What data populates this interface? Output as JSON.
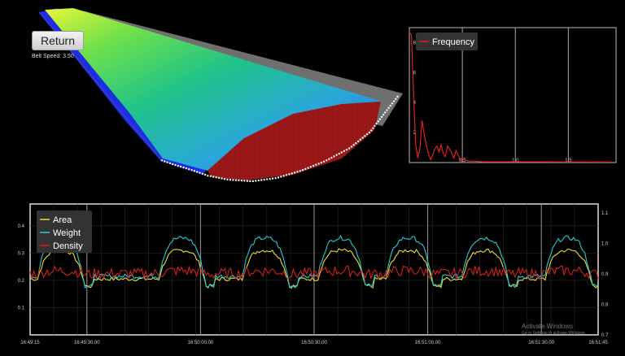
{
  "controls": {
    "return_label": "Return",
    "belt_speed_label": "Belt Speed:",
    "belt_speed_value": "3.50"
  },
  "frequency_chart": {
    "chart_data": {
      "type": "line",
      "legend": "top-left",
      "series": [
        {
          "name": "Frequency",
          "color": "#e0211f",
          "x": [
            0.0,
            0.02,
            0.04,
            0.06,
            0.08,
            0.1,
            0.12,
            0.14,
            0.16,
            0.18,
            0.2,
            0.22,
            0.24,
            0.26,
            0.28,
            0.3,
            0.32,
            0.34,
            0.36,
            0.38,
            0.4,
            0.42,
            0.44,
            0.46,
            0.48,
            0.5,
            0.55,
            0.6,
            0.7,
            0.8,
            1.0,
            1.2,
            1.5,
            1.9
          ],
          "y": [
            8.7,
            8.5,
            4.5,
            1.2,
            0.3,
            0.9,
            2.8,
            1.9,
            1.2,
            0.6,
            0.2,
            0.5,
            0.9,
            1.1,
            0.7,
            1.2,
            0.6,
            0.4,
            1.1,
            0.9,
            0.6,
            0.3,
            0.8,
            0.5,
            0.2,
            0.3,
            0.1,
            0.1,
            0.05,
            0.05,
            0.05,
            0.05,
            0.04,
            0.03
          ]
        }
      ],
      "xlim": [
        0,
        1.95
      ],
      "ylim": [
        0,
        9
      ],
      "x_ticks": [
        "0.5",
        "1.0",
        "1.5"
      ],
      "x_tick_values": [
        0.5,
        1.0,
        1.5
      ],
      "y_ticks": [
        "2",
        "4",
        "6",
        "8"
      ],
      "y_tick_values": [
        2,
        4,
        6,
        8
      ]
    }
  },
  "main_chart": {
    "chart_data": {
      "type": "line",
      "legend": "top-left",
      "x_ticks": [
        "16:49:15",
        "16:49:30.00",
        "16:50:00.00",
        "16:50:30.00",
        "16:51:00.00",
        "16:51:30.00",
        "16:51:45"
      ],
      "x_tick_values": [
        0,
        15,
        45,
        75,
        105,
        135,
        150
      ],
      "xlim": [
        0,
        150
      ],
      "left_axis": {
        "ticks": [
          "0.1",
          "0.2",
          "0.3",
          "0.4"
        ],
        "tick_values": [
          0.1,
          0.2,
          0.3,
          0.4
        ],
        "lim": [
          0,
          0.48
        ]
      },
      "right_axis": {
        "ticks": [
          "0.7",
          "0.8",
          "0.9",
          "1.0",
          "1.1"
        ],
        "tick_values": [
          0.7,
          0.8,
          0.9,
          1.0,
          1.1
        ],
        "lim": [
          0.7,
          1.13
        ]
      },
      "vlines": [
        15,
        45,
        75,
        105,
        135
      ],
      "pulse_centers": [
        8,
        40,
        62,
        82,
        100,
        120,
        142
      ],
      "series": [
        {
          "name": "Area",
          "color": "#e6df3a",
          "axis": "left",
          "base": 0.205,
          "peak": 0.31,
          "noise": 0.012
        },
        {
          "name": "Weight",
          "color": "#27c9d6",
          "axis": "left",
          "base": 0.215,
          "peak": 0.355,
          "noise": 0.014
        },
        {
          "name": "Density",
          "color": "#d4201c",
          "axis": "left",
          "base": 0.225,
          "peak": 0.235,
          "noise": 0.02
        }
      ]
    }
  },
  "watermark": {
    "title": "Activate Windows",
    "subtitle": "Go to Settings to activate Windows."
  }
}
